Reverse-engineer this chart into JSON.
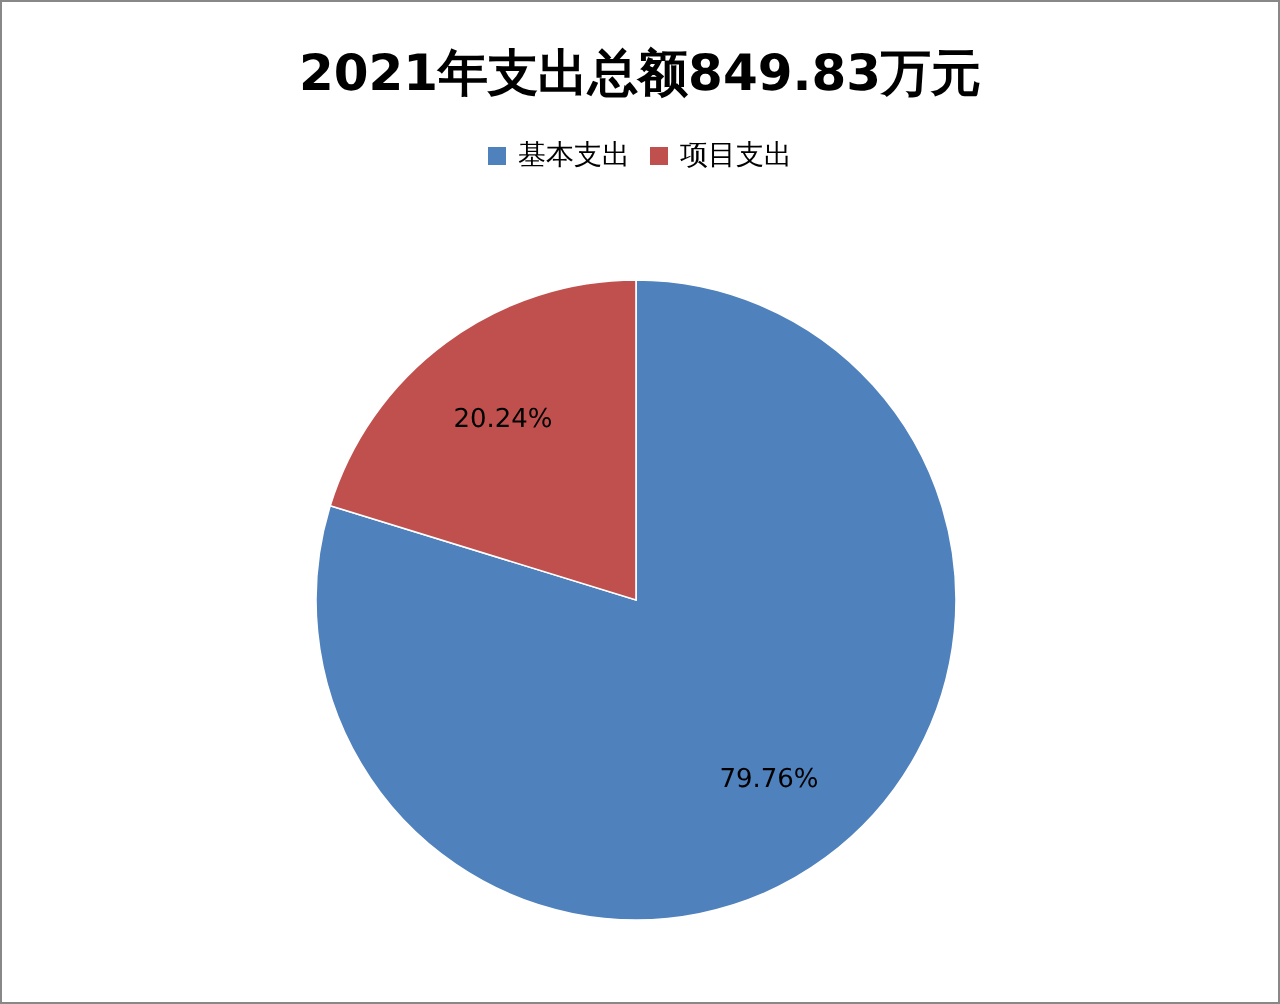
{
  "chart_data": {
    "type": "pie",
    "title": "2021年支出总额849.83万元",
    "categories": [
      "基本支出",
      "项目支出"
    ],
    "values": [
      79.76,
      20.24
    ],
    "colors": [
      "#4f81bd",
      "#c0504d"
    ],
    "value_labels": [
      "79.76%",
      "20.24%"
    ],
    "legend": "top"
  }
}
